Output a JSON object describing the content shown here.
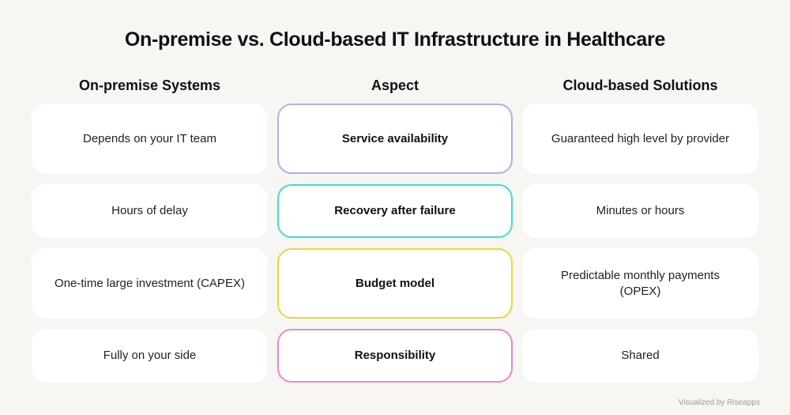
{
  "title": "On-premise vs. Cloud-based IT Infrastructure in Healthcare",
  "columns": {
    "left": "On-premise Systems",
    "middle": "Aspect",
    "right": "Cloud-based Solutions"
  },
  "rows": [
    {
      "on_premise": "Depends on your IT team",
      "aspect": "Service availability",
      "cloud": "Guaranteed high level by provider",
      "accent": "#a3b4f0"
    },
    {
      "on_premise": "Hours of delay",
      "aspect": "Recovery after failure",
      "cloud": "Minutes or hours",
      "accent": "#3fdcd6"
    },
    {
      "on_premise": "One-time large investment (CAPEX)",
      "aspect": "Budget model",
      "cloud": "Predictable monthly payments (OPEX)",
      "accent": "#f2d33b"
    },
    {
      "on_premise": "Fully on your side",
      "aspect": "Responsibility",
      "cloud": "Shared",
      "accent": "#ee84d2"
    }
  ],
  "footer": {
    "prefix": "Visualized by",
    "brand": "Riseapps"
  }
}
